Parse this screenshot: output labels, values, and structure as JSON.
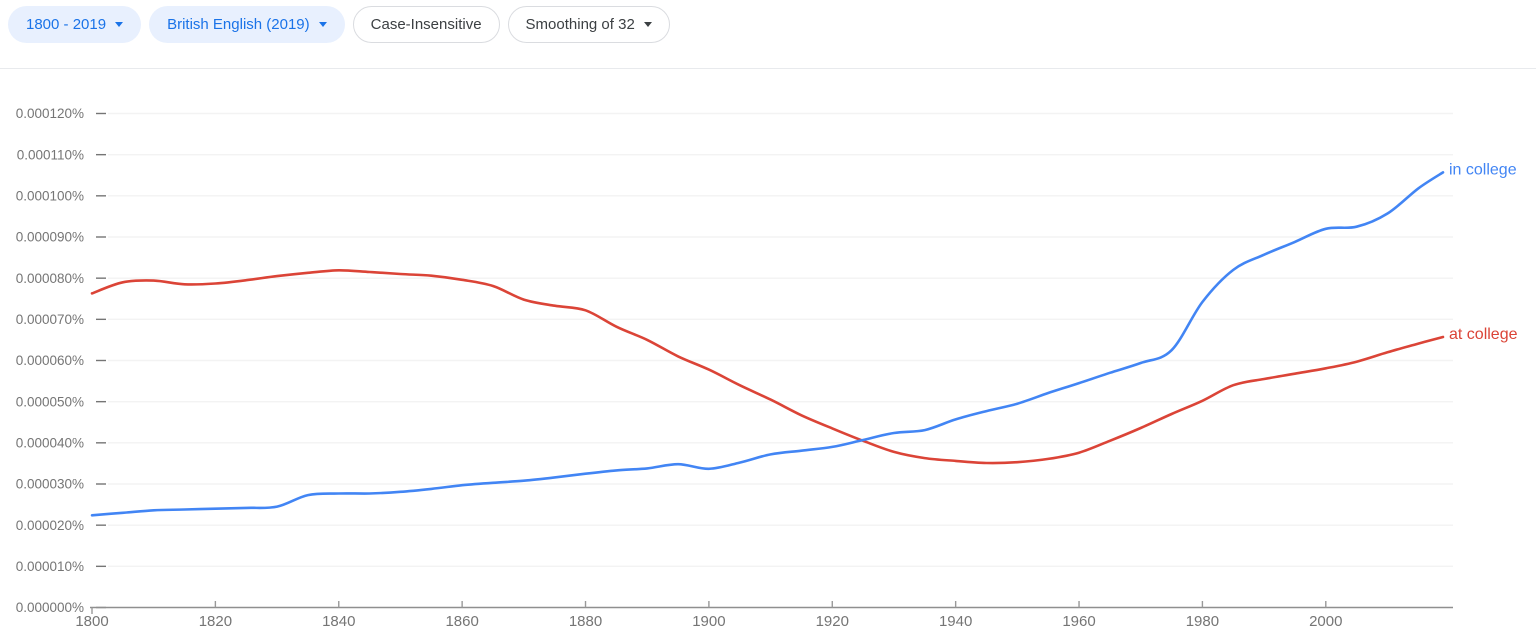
{
  "toolbar": {
    "chips": [
      {
        "label": "1800 - 2019",
        "type": "filled",
        "has_caret": true
      },
      {
        "label": "British English (2019)",
        "type": "filled",
        "has_caret": true
      },
      {
        "label": "Case-Insensitive",
        "type": "outlined",
        "has_caret": false
      },
      {
        "label": "Smoothing of 32",
        "type": "outlined",
        "has_caret": true
      }
    ]
  },
  "colors": {
    "chip_filled_bg": "#e8f0fe",
    "chip_filled_text": "#1a73e8",
    "chip_outline_border": "#dadce0",
    "chip_outline_text": "#3c4043",
    "axis_line": "#8f8f8f",
    "axis_label": "#757575",
    "gridline": "#f3f3f3",
    "series_blue": "#4285f4",
    "series_red": "#db4437"
  },
  "chart_data": {
    "type": "line",
    "title": "",
    "xlabel": "",
    "ylabel": "",
    "grid": true,
    "legend_position": "line-end-labels",
    "xlim": [
      1800,
      2019
    ],
    "ylim": [
      0,
      0.000125
    ],
    "x_ticks": [
      1800,
      1820,
      1840,
      1860,
      1880,
      1900,
      1920,
      1940,
      1960,
      1980,
      2000
    ],
    "y_tick_interval": 1e-05,
    "y_ticks": [
      "0.000000%",
      "0.000010%",
      "0.000020%",
      "0.000030%",
      "0.000040%",
      "0.000050%",
      "0.000060%",
      "0.000070%",
      "0.000080%",
      "0.000090%",
      "0.000100%",
      "0.000110%",
      "0.000120%"
    ],
    "x": [
      1800,
      1805,
      1810,
      1815,
      1820,
      1825,
      1830,
      1835,
      1840,
      1845,
      1850,
      1855,
      1860,
      1865,
      1870,
      1875,
      1880,
      1885,
      1890,
      1895,
      1900,
      1905,
      1910,
      1915,
      1920,
      1925,
      1930,
      1935,
      1940,
      1945,
      1950,
      1955,
      1960,
      1965,
      1970,
      1975,
      1980,
      1985,
      1990,
      1995,
      2000,
      2005,
      2010,
      2015,
      2019
    ],
    "series": [
      {
        "name": "in college",
        "color": "#4285f4",
        "values": [
          2.24e-05,
          2.3e-05,
          2.36e-05,
          2.38e-05,
          2.4e-05,
          2.42e-05,
          2.45e-05,
          2.73e-05,
          2.77e-05,
          2.77e-05,
          2.81e-05,
          2.88e-05,
          2.97e-05,
          3.03e-05,
          3.08e-05,
          3.16e-05,
          3.25e-05,
          3.33e-05,
          3.38e-05,
          3.48e-05,
          3.37e-05,
          3.52e-05,
          3.72e-05,
          3.81e-05,
          3.9e-05,
          4.07e-05,
          4.24e-05,
          4.31e-05,
          4.57e-05,
          4.77e-05,
          4.95e-05,
          5.21e-05,
          5.45e-05,
          5.7e-05,
          5.94e-05,
          6.25e-05,
          7.42e-05,
          8.2e-05,
          8.57e-05,
          8.88e-05,
          9.2e-05,
          9.25e-05,
          9.57e-05,
          0.0001018,
          0.0001057
        ]
      },
      {
        "name": "at college",
        "color": "#db4437",
        "values": [
          7.63e-05,
          7.9e-05,
          7.94e-05,
          7.85e-05,
          7.87e-05,
          7.95e-05,
          8.05e-05,
          8.13e-05,
          8.19e-05,
          8.15e-05,
          8.1e-05,
          8.06e-05,
          7.96e-05,
          7.81e-05,
          7.48e-05,
          7.33e-05,
          7.22e-05,
          6.82e-05,
          6.5e-05,
          6.1e-05,
          5.78e-05,
          5.4e-05,
          5.05e-05,
          4.67e-05,
          4.35e-05,
          4.05e-05,
          3.78e-05,
          3.63e-05,
          3.56e-05,
          3.51e-05,
          3.53e-05,
          3.61e-05,
          3.76e-05,
          4.05e-05,
          4.36e-05,
          4.7e-05,
          5.02e-05,
          5.4e-05,
          5.55e-05,
          5.68e-05,
          5.81e-05,
          5.97e-05,
          6.2e-05,
          6.41e-05,
          6.57e-05
        ]
      }
    ]
  }
}
